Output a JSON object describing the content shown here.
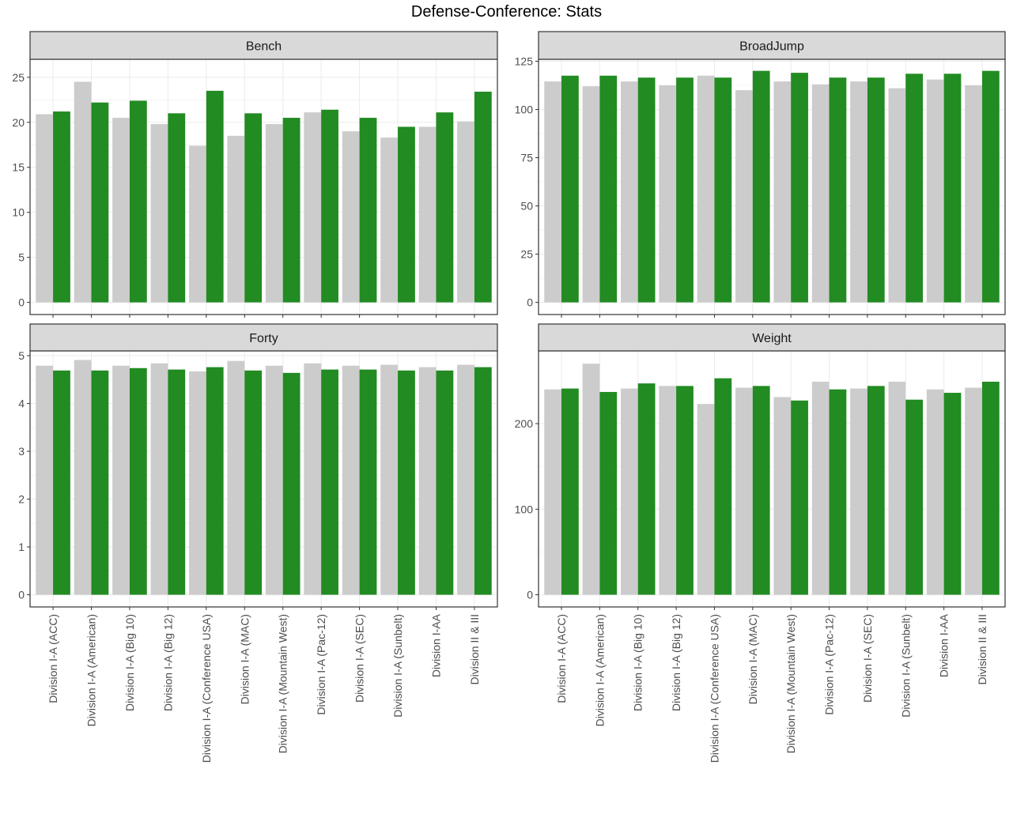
{
  "title": "Defense-Conference: Stats",
  "colors": {
    "group_a": "#cccccc",
    "group_b": "#228b22",
    "strip": "#d9d9d9",
    "grid": "#ebebeb"
  },
  "chart_data": {
    "type": "bar",
    "layout": "facet_wrap",
    "title": "Defense-Conference: Stats",
    "xlabel": "",
    "ylabel": "",
    "grid": true,
    "legend": "none",
    "categories": [
      "Division I-A (ACC)",
      "Division I-A (American)",
      "Division I-A (Big 10)",
      "Division I-A (Big 12)",
      "Division I-A (Conference USA)",
      "Division I-A (MAC)",
      "Division I-A (Mountain West)",
      "Division I-A (Pac-12)",
      "Division I-A (SEC)",
      "Division I-A (Sunbelt)",
      "Division I-AA",
      "Division II & III"
    ],
    "facets": [
      {
        "name": "Bench",
        "ylim": [
          0,
          27
        ],
        "yticks": [
          0,
          5,
          10,
          15,
          20,
          25
        ],
        "series": [
          {
            "values": [
              20.9,
              24.5,
              20.5,
              19.8,
              17.4,
              18.5,
              19.8,
              21.1,
              19.0,
              18.3,
              19.5,
              20.1
            ]
          },
          {
            "values": [
              21.2,
              22.2,
              22.4,
              21.0,
              23.5,
              21.0,
              20.5,
              21.4,
              20.5,
              19.5,
              21.1,
              23.4
            ]
          }
        ]
      },
      {
        "name": "BroadJump",
        "ylim": [
          0,
          126
        ],
        "yticks": [
          0,
          25,
          50,
          75,
          100,
          125
        ],
        "series": [
          {
            "values": [
              114.5,
              112.0,
              114.5,
              112.5,
              117.5,
              110.0,
              114.5,
              113.0,
              114.5,
              111.0,
              115.5,
              112.5
            ]
          },
          {
            "values": [
              117.5,
              117.5,
              116.5,
              116.5,
              116.5,
              120.0,
              119.0,
              116.5,
              116.5,
              118.5,
              118.5,
              120.0
            ]
          }
        ]
      },
      {
        "name": "Forty",
        "ylim": [
          0,
          5.1
        ],
        "yticks": [
          0,
          1,
          2,
          3,
          4,
          5
        ],
        "series": [
          {
            "values": [
              4.79,
              4.91,
              4.79,
              4.84,
              4.67,
              4.89,
              4.79,
              4.84,
              4.79,
              4.81,
              4.76,
              4.81
            ]
          },
          {
            "values": [
              4.69,
              4.69,
              4.74,
              4.71,
              4.76,
              4.69,
              4.64,
              4.71,
              4.71,
              4.69,
              4.69,
              4.76
            ]
          }
        ]
      },
      {
        "name": "Weight",
        "ylim": [
          0,
          285
        ],
        "yticks": [
          0,
          100,
          200
        ],
        "series": [
          {
            "values": [
              240,
              270,
              241,
              244,
              223,
              242,
              231,
              249,
              241,
              249,
              240,
              242
            ]
          },
          {
            "values": [
              241,
              237,
              247,
              244,
              253,
              244,
              227,
              240,
              244,
              228,
              236,
              249
            ]
          }
        ]
      }
    ]
  }
}
